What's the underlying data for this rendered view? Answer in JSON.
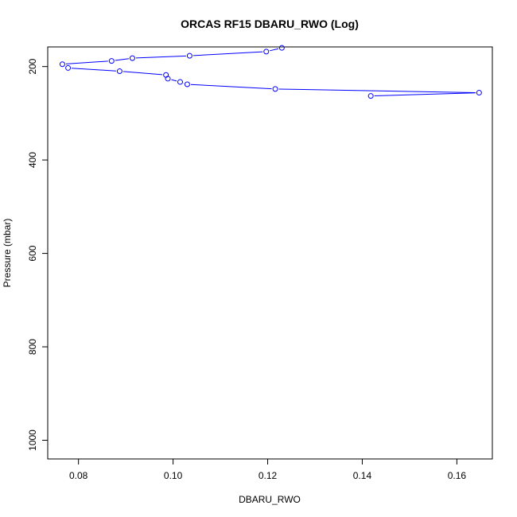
{
  "chart_data": {
    "type": "line",
    "title": "ORCAS RF15 DBARU_RWO (Log)",
    "xlabel": "DBARU_RWO",
    "ylabel": "Pressure (mbar)",
    "xlim": [
      0.0735,
      0.1675
    ],
    "ylim": [
      1040,
      158
    ],
    "y_reversed": true,
    "x_ticks": [
      0.08,
      0.1,
      0.12,
      0.14,
      0.16
    ],
    "x_tick_labels": [
      "0.08",
      "0.10",
      "0.12",
      "0.14",
      "0.16"
    ],
    "y_ticks": [
      200,
      400,
      600,
      800,
      1000
    ],
    "y_tick_labels": [
      "200",
      "400",
      "600",
      "800",
      "1000"
    ],
    "grid": false,
    "line_color": "#0000ff",
    "series": [
      {
        "x": [
          0.123,
          0.1197,
          0.1035,
          0.0914,
          0.087,
          0.0766,
          0.0778,
          0.0887,
          0.0985,
          0.0989,
          0.1015,
          0.103,
          0.1216,
          0.1647,
          0.1418
        ],
        "y": [
          160,
          168,
          177,
          182,
          188,
          195,
          203,
          210,
          218,
          226,
          233,
          238,
          248,
          256,
          263
        ]
      }
    ]
  }
}
